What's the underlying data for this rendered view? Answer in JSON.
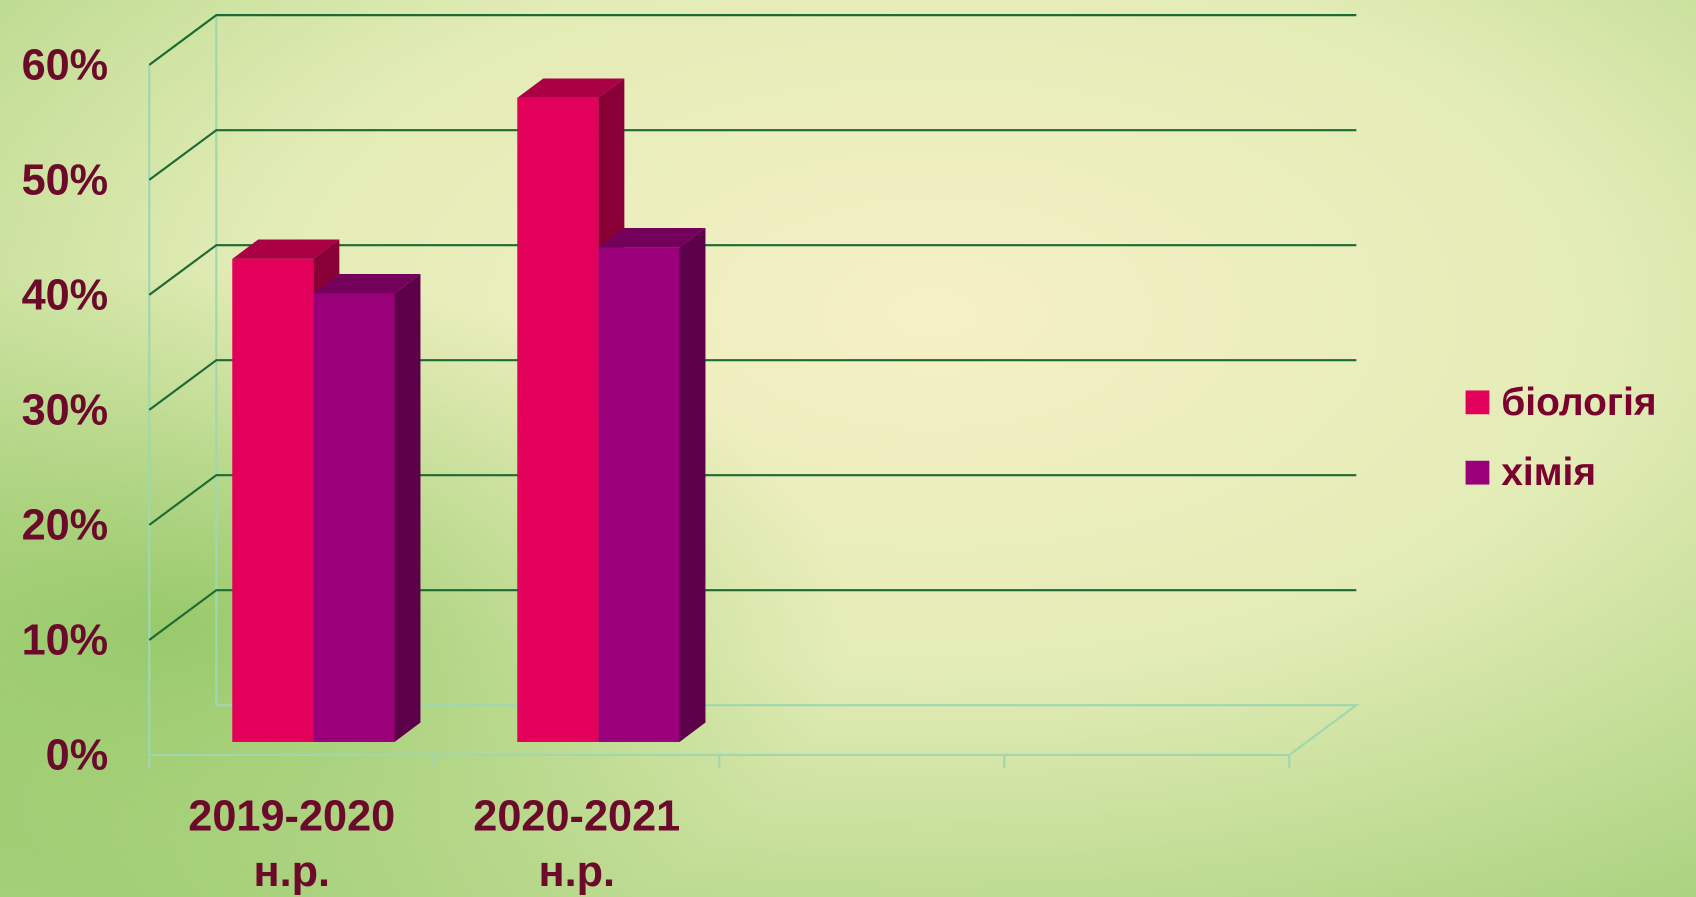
{
  "chart_data": {
    "type": "bar3d",
    "categories": [
      "2019-2020 н.р.",
      "2020-2021 н.р."
    ],
    "series": [
      {
        "name": "біологія",
        "color": "#e2005a",
        "values": [
          42,
          56
        ]
      },
      {
        "name": "хімія",
        "color": "#990079",
        "values": [
          39,
          43
        ]
      }
    ],
    "ylim": [
      0,
      60
    ],
    "yticks": [
      {
        "value": 0,
        "label": "0%"
      },
      {
        "value": 10,
        "label": "10%"
      },
      {
        "value": 20,
        "label": "20%"
      },
      {
        "value": 30,
        "label": "30%"
      },
      {
        "value": 40,
        "label": "40%"
      },
      {
        "value": 50,
        "label": "50%"
      },
      {
        "value": 60,
        "label": "60%"
      }
    ],
    "grid": true,
    "legend": "right"
  }
}
